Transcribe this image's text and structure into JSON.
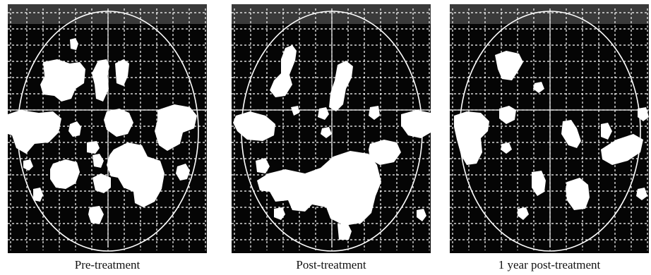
{
  "figure": {
    "panels": [
      {
        "caption": "Pre-treatment"
      },
      {
        "caption": "Post-treatment"
      },
      {
        "caption": "1 year post-treatment"
      }
    ],
    "colors": {
      "background": "#050505",
      "activation": "#ffffff",
      "grid": "#ffffff",
      "outline": "#ffffff",
      "top_band": "#3a3a3a"
    }
  }
}
